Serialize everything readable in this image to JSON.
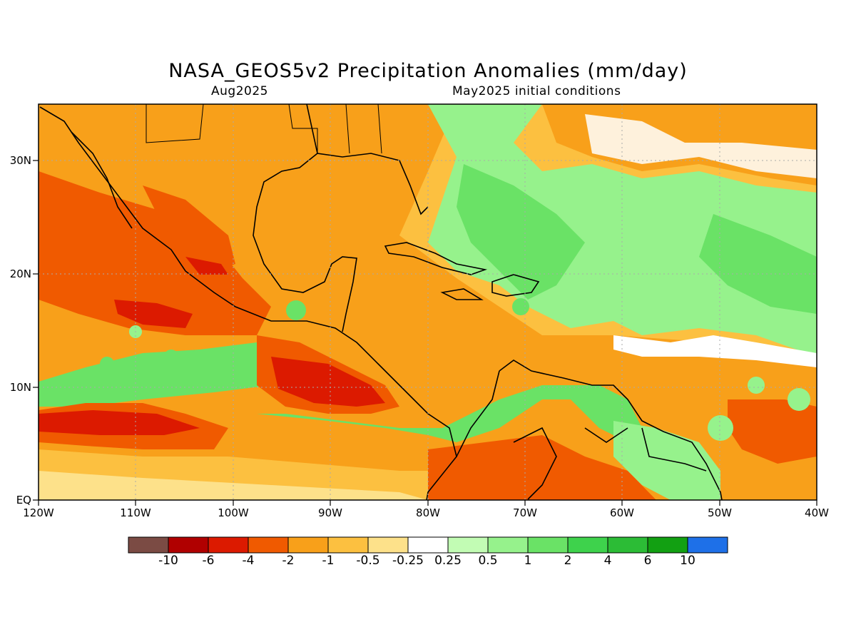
{
  "title": "NASA_GEOS5v2 Precipitation Anomalies (mm/day)",
  "subtitle_left": "Aug2025",
  "subtitle_right": "May2025 initial conditions",
  "map": {
    "lon_range": [
      -120,
      -40
    ],
    "lat_range": [
      0,
      35
    ],
    "lat_labels": [
      "30N",
      "20N",
      "10N",
      "EQ"
    ],
    "lon_labels": [
      "120W",
      "110W",
      "100W",
      "90W",
      "80W",
      "70W",
      "60W",
      "50W",
      "40W"
    ],
    "grid": true
  },
  "colorbar": {
    "labels": [
      "-10",
      "-6",
      "-4",
      "-2",
      "-1",
      "-0.5",
      "-0.25",
      "0.25",
      "0.5",
      "1",
      "2",
      "4",
      "6",
      "10"
    ],
    "colors": [
      "#7b4b44",
      "#b00000",
      "#dc1a00",
      "#f05a00",
      "#f8a01a",
      "#fcc040",
      "#fde18a",
      "#ffffff",
      "#c2fcb4",
      "#96f28c",
      "#6ae266",
      "#3ed24c",
      "#2cbc36",
      "#12a012",
      "#1e70e8"
    ]
  }
}
